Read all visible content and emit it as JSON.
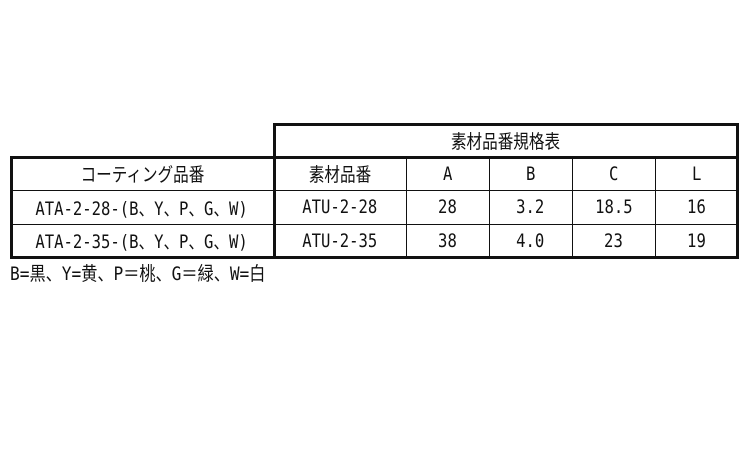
{
  "spec_title": "素材品番規格表",
  "headers": [
    "コーティング品番",
    "素材品番",
    "A",
    "B",
    "C",
    "L"
  ],
  "rows": [
    [
      "ATA-2-28-(B、Y、P、G、W)",
      "ATU-2-28",
      "28",
      "3.2",
      "18.5",
      "16"
    ],
    [
      "ATA-2-35-(B、Y、P、G、W)",
      "ATU-2-35",
      "38",
      "4.0",
      "23",
      "19"
    ]
  ],
  "note": "B=黒、Y=黄、P＝桃、G＝緑、W=白"
}
